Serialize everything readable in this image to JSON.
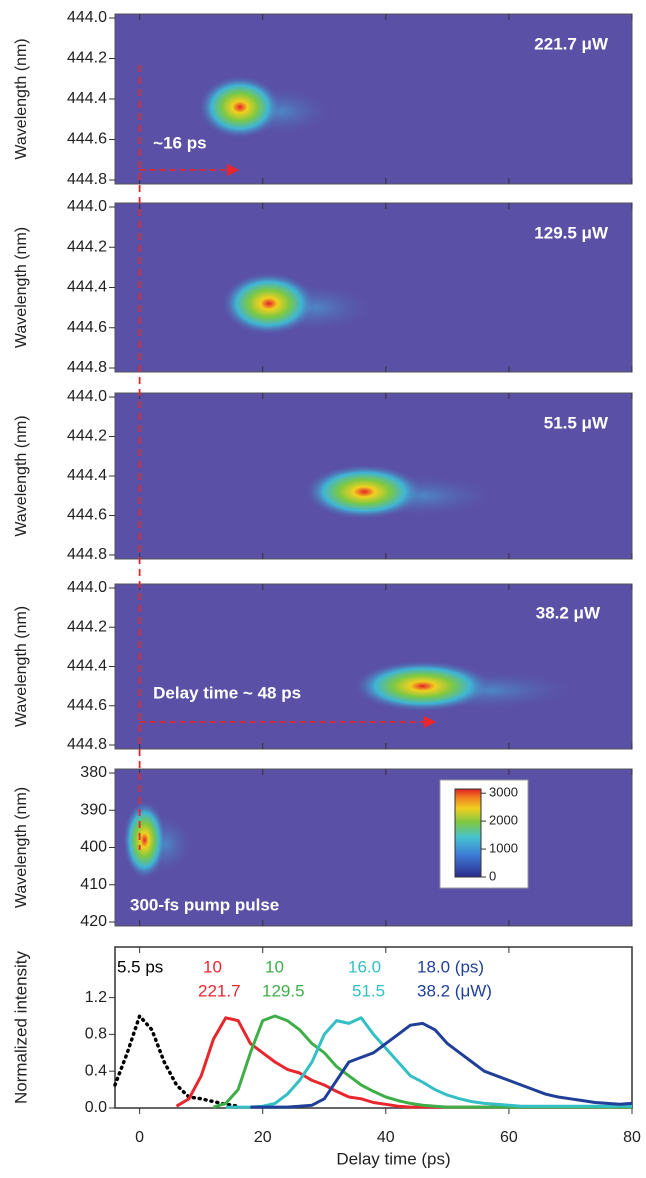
{
  "chart_data": [
    {
      "type": "heatmap",
      "ylim": [
        444,
        444.8
      ],
      "yticks": [
        {
          "value": 444,
          "label": "444.0"
        },
        444.2,
        444.4,
        444.6,
        444.8
      ],
      "y_label": "Wavelength (nm)",
      "label": "221.7 μW",
      "arrow_label": "~16 ps",
      "background": "#5a50a6"
    },
    {
      "type": "heatmap",
      "ylim": [
        444,
        444.8
      ],
      "yticks": [
        {
          "value": 444,
          "label": "444.0"
        },
        444.2,
        444.4,
        444.6,
        444.8
      ],
      "y_label": "Wavelength (nm)",
      "label": "129.5 μW",
      "background": "#5a50a6"
    },
    {
      "type": "heatmap",
      "ylim": [
        444,
        444.8
      ],
      "yticks": [
        {
          "value": 444,
          "label": "444.0"
        },
        444.2,
        444.4,
        444.6,
        444.8
      ],
      "y_label": "Wavelength (nm)",
      "label": "51.5 μW",
      "background": "#5a50a6"
    },
    {
      "type": "heatmap",
      "ylim": [
        444,
        444.8
      ],
      "yticks": [
        {
          "value": 444,
          "label": "444.0"
        },
        444.2,
        444.4,
        444.6,
        444.8
      ],
      "y_label": "Wavelength (nm)",
      "label": "38.2 μW",
      "arrow_label": "Delay time ~ 48 ps",
      "background": "#5a50a6"
    },
    {
      "type": "heatmap",
      "ylim": [
        380,
        420
      ],
      "yticks": [
        380,
        390,
        400,
        410,
        420
      ],
      "y_label": "Wavelength (nm)",
      "label": "300-fs pump pulse",
      "background": "#5a50a6",
      "colorbar": {
        "clim": [
          0,
          3150
        ],
        "ticks": [
          0,
          1000,
          2000,
          3000
        ]
      }
    },
    {
      "type": "line",
      "x_label": "Delay time (ps)",
      "y_label": "Normalized intensity",
      "xlim": [
        -4,
        80
      ],
      "xticks": [
        0,
        20,
        40,
        60,
        80
      ],
      "ylim": [
        0,
        1.75
      ],
      "yticks": [
        {
          "value": 0,
          "label": "0.0"
        },
        0.4,
        0.8,
        1.2
      ],
      "x": [
        -4,
        -2,
        0,
        2,
        4,
        6,
        8,
        10,
        12,
        14,
        16,
        18,
        20,
        22,
        24,
        26,
        28,
        30,
        32,
        34,
        36,
        38,
        40,
        42,
        44,
        46,
        48,
        50,
        52,
        54,
        56,
        58,
        60,
        62,
        64,
        66,
        68,
        70,
        72,
        74,
        76,
        78,
        80
      ],
      "series": [
        {
          "color": "#000000",
          "style": "dotted",
          "values": [
            0.25,
            0.6,
            1.0,
            0.85,
            0.5,
            0.25,
            0.12,
            0.1,
            0.07,
            0.04,
            0.02,
            null,
            null,
            null,
            null,
            null,
            null,
            null,
            null,
            null,
            null,
            null,
            null,
            null,
            null,
            null,
            null,
            null,
            null,
            null,
            null,
            null,
            null,
            null,
            null,
            null,
            null,
            null,
            null,
            null,
            null,
            null,
            null
          ]
        },
        {
          "color": "#e8262d",
          "values": [
            null,
            null,
            null,
            null,
            null,
            0.02,
            0.1,
            0.35,
            0.75,
            0.98,
            0.95,
            0.7,
            0.6,
            0.5,
            0.42,
            0.38,
            0.3,
            0.25,
            0.18,
            0.12,
            0.1,
            0.06,
            0.04,
            0.02,
            0.01,
            0.01,
            0.01,
            0.01,
            0.01,
            0.01,
            0.01,
            0.01,
            0.01,
            0.01,
            0.01,
            0.01,
            0.01,
            0.01,
            0.01,
            0.01,
            0.01,
            0.01,
            0.01
          ]
        },
        {
          "color": "#3fae49",
          "values": [
            null,
            null,
            null,
            null,
            null,
            null,
            null,
            null,
            0.01,
            0.05,
            0.2,
            0.6,
            0.95,
            1.0,
            0.95,
            0.85,
            0.7,
            0.6,
            0.45,
            0.35,
            0.25,
            0.18,
            0.12,
            0.08,
            0.05,
            0.03,
            0.02,
            0.01,
            0.01,
            0.01,
            0.01,
            0.01,
            0.01,
            0.01,
            0.01,
            0.01,
            0.01,
            0.01,
            0.01,
            0.01,
            0.01,
            0.01,
            0.01
          ]
        },
        {
          "color": "#33bfc4",
          "values": [
            null,
            null,
            null,
            null,
            null,
            null,
            null,
            null,
            null,
            0.01,
            0.01,
            0.01,
            0.02,
            0.05,
            0.15,
            0.3,
            0.5,
            0.8,
            0.95,
            0.92,
            0.98,
            0.8,
            0.65,
            0.5,
            0.35,
            0.28,
            0.2,
            0.14,
            0.1,
            0.07,
            0.05,
            0.04,
            0.03,
            0.02,
            0.02,
            0.02,
            0.02,
            0.02,
            0.02,
            0.02,
            0.02,
            0.02,
            0.02
          ]
        },
        {
          "color": "#1f3f99",
          "values": [
            null,
            null,
            null,
            null,
            null,
            null,
            null,
            null,
            null,
            null,
            null,
            0.01,
            0.01,
            0.01,
            0.01,
            0.02,
            0.03,
            0.1,
            0.3,
            0.5,
            0.55,
            0.6,
            0.7,
            0.8,
            0.9,
            0.92,
            0.85,
            0.7,
            0.6,
            0.5,
            0.4,
            0.35,
            0.3,
            0.25,
            0.2,
            0.15,
            0.12,
            0.1,
            0.08,
            0.06,
            0.05,
            0.04,
            0.05
          ]
        }
      ],
      "annotations": [
        {
          "text": "5.5 ps",
          "color": "#000000"
        },
        {
          "text": "10",
          "color": "#e8262d"
        },
        {
          "text": "221.7",
          "color": "#e8262d"
        },
        {
          "text": "10",
          "color": "#3fae49"
        },
        {
          "text": "129.5",
          "color": "#3fae49"
        },
        {
          "text": "16.0",
          "color": "#33bfc4"
        },
        {
          "text": "51.5",
          "color": "#33bfc4"
        },
        {
          "text": "18.0 (ps)",
          "color": "#1f3f99"
        },
        {
          "text": "38.2 (μW)",
          "color": "#1f3f99"
        }
      ]
    }
  ]
}
